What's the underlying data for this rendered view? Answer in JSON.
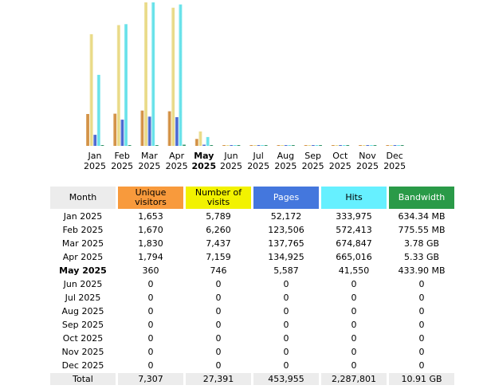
{
  "chart_data": {
    "type": "bar",
    "categories": [
      "Jan 2025",
      "Feb 2025",
      "Mar 2025",
      "Apr 2025",
      "May 2025",
      "Jun 2025",
      "Jul 2025",
      "Aug 2025",
      "Sep 2025",
      "Oct 2025",
      "Nov 2025",
      "Dec 2025"
    ],
    "month_labels": [
      {
        "m": "Jan",
        "y": "2025"
      },
      {
        "m": "Feb",
        "y": "2025"
      },
      {
        "m": "Mar",
        "y": "2025"
      },
      {
        "m": "Apr",
        "y": "2025"
      },
      {
        "m": "May",
        "y": "2025"
      },
      {
        "m": "Jun",
        "y": "2025"
      },
      {
        "m": "Jul",
        "y": "2025"
      },
      {
        "m": "Aug",
        "y": "2025"
      },
      {
        "m": "Sep",
        "y": "2025"
      },
      {
        "m": "Oct",
        "y": "2025"
      },
      {
        "m": "Nov",
        "y": "2025"
      },
      {
        "m": "Dec",
        "y": "2025"
      }
    ],
    "current_month_index": 4,
    "series": [
      {
        "name": "Unique visitors",
        "color": "#d08a38",
        "values": [
          1653,
          1670,
          1830,
          1794,
          360,
          0,
          0,
          0,
          0,
          0,
          0,
          0
        ]
      },
      {
        "name": "Number of visits",
        "color": "#e8d880",
        "values": [
          5789,
          6260,
          7437,
          7159,
          746,
          0,
          0,
          0,
          0,
          0,
          0,
          0
        ]
      },
      {
        "name": "Pages",
        "color": "#3f5fcf",
        "values": [
          52172,
          123506,
          137765,
          134925,
          5587,
          0,
          0,
          0,
          0,
          0,
          0,
          0
        ]
      },
      {
        "name": "Hits",
        "color": "#5fe0e8",
        "values": [
          333975,
          572413,
          674847,
          665016,
          41550,
          0,
          0,
          0,
          0,
          0,
          0,
          0
        ]
      },
      {
        "name": "Bandwidth",
        "color": "#1f8a5a",
        "values": [
          634.34,
          775.55,
          3873.4,
          5457.9,
          433.9,
          0,
          0,
          0,
          0,
          0,
          0,
          0
        ]
      }
    ],
    "bar_groups": [
      [
        0,
        1
      ],
      [
        2,
        3,
        4
      ]
    ]
  },
  "table": {
    "headers": {
      "month": "Month",
      "unique": "Unique visitors",
      "visits": "Number of visits",
      "pages": "Pages",
      "hits": "Hits",
      "bandwidth": "Bandwidth"
    },
    "rows": [
      [
        "Jan 2025",
        "1,653",
        "5,789",
        "52,172",
        "333,975",
        "634.34 MB"
      ],
      [
        "Feb 2025",
        "1,670",
        "6,260",
        "123,506",
        "572,413",
        "775.55 MB"
      ],
      [
        "Mar 2025",
        "1,830",
        "7,437",
        "137,765",
        "674,847",
        "3.78 GB"
      ],
      [
        "Apr 2025",
        "1,794",
        "7,159",
        "134,925",
        "665,016",
        "5.33 GB"
      ],
      [
        "May 2025",
        "360",
        "746",
        "5,587",
        "41,550",
        "433.90 MB"
      ],
      [
        "Jun 2025",
        "0",
        "0",
        "0",
        "0",
        "0"
      ],
      [
        "Jul 2025",
        "0",
        "0",
        "0",
        "0",
        "0"
      ],
      [
        "Aug 2025",
        "0",
        "0",
        "0",
        "0",
        "0"
      ],
      [
        "Sep 2025",
        "0",
        "0",
        "0",
        "0",
        "0"
      ],
      [
        "Oct 2025",
        "0",
        "0",
        "0",
        "0",
        "0"
      ],
      [
        "Nov 2025",
        "0",
        "0",
        "0",
        "0",
        "0"
      ],
      [
        "Dec 2025",
        "0",
        "0",
        "0",
        "0",
        "0"
      ]
    ],
    "total": [
      "Total",
      "7,307",
      "27,391",
      "453,955",
      "2,287,801",
      "10.91 GB"
    ]
  }
}
